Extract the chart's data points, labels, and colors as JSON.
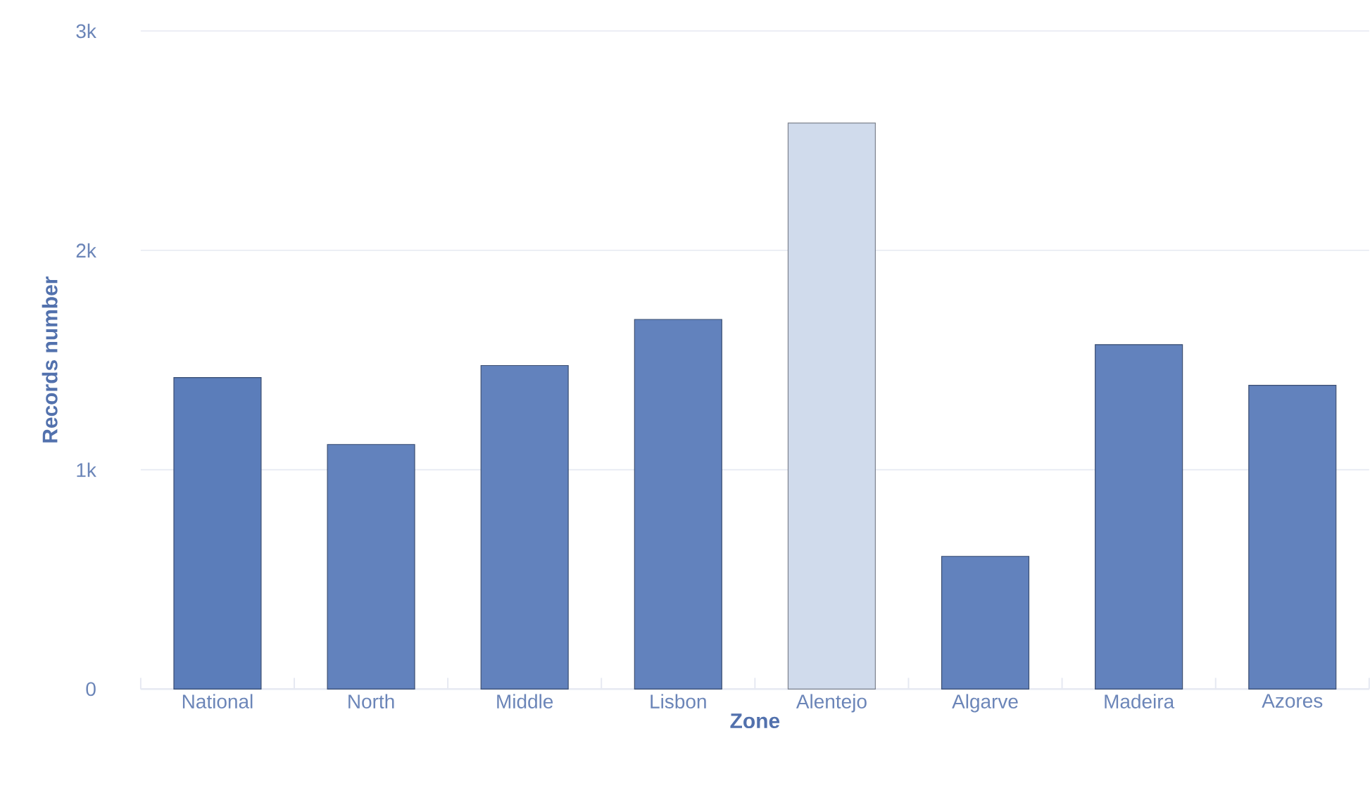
{
  "chart_data": {
    "type": "bar",
    "xlabel": "Zone",
    "ylabel": "Records number",
    "categories": [
      "National",
      "North",
      "Middle",
      "Lisbon",
      "Alentejo",
      "Algarve",
      "Madeira",
      "Azores"
    ],
    "values": [
      1420,
      1115,
      1475,
      1685,
      2580,
      605,
      1570,
      1385
    ],
    "colors": [
      "#5b7dba",
      "#6282bd",
      "#6282bd",
      "#6282bd",
      "#d0dbec",
      "#6282bd",
      "#6282bd",
      "#6282bd"
    ],
    "ylim": [
      0,
      3000
    ],
    "yticks": [
      {
        "value": 0,
        "label": "0"
      },
      {
        "value": 1000,
        "label": "1k"
      },
      {
        "value": 2000,
        "label": "2k"
      },
      {
        "value": 3000,
        "label": "3k"
      }
    ],
    "grid": "y"
  }
}
